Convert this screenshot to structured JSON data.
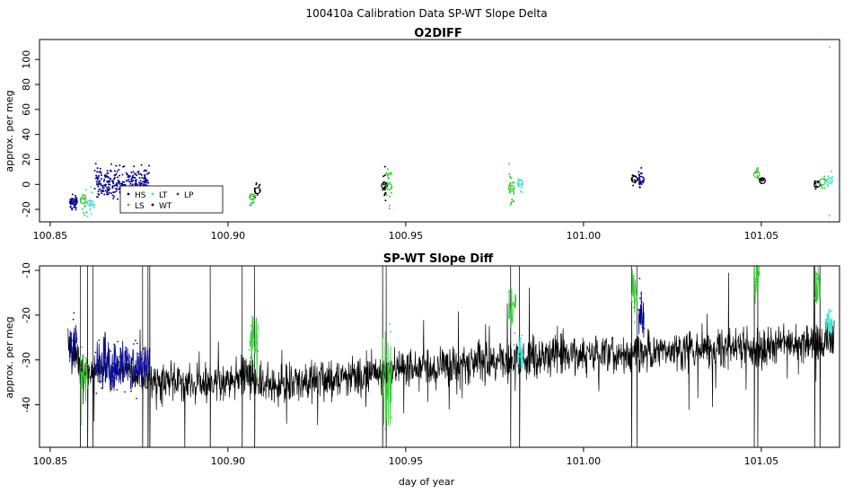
{
  "figure": {
    "title": "100410a   Calibration Data SP-WT Slope Delta",
    "x_axis_label": "day of year"
  },
  "colors": {
    "HS": "#00008b",
    "LS": "#32cd32",
    "LT": "#40e0d0",
    "WT": "#000000",
    "LP": "#404040",
    "HS_run": "#1010a0",
    "trace": "#000000"
  },
  "legend": {
    "entries": [
      {
        "key": "HS",
        "label": "HS"
      },
      {
        "key": "LS",
        "label": "LS"
      },
      {
        "key": "LT",
        "label": "LT"
      },
      {
        "key": "WT",
        "label": "WT"
      },
      {
        "key": "LP",
        "label": "LP"
      }
    ]
  },
  "chart_data": [
    {
      "type": "scatter",
      "title": "O2DIFF",
      "xlabel": "",
      "ylabel": "approx. per meg",
      "xlim": [
        100.847,
        101.072
      ],
      "ylim": [
        -30,
        116
      ],
      "xticks": [
        100.85,
        100.9,
        100.95,
        101.0,
        101.05
      ],
      "xtick_labels": [
        "100.85",
        "100.90",
        "100.95",
        "101.00",
        "101.05"
      ],
      "yticks": [
        -20,
        0,
        20,
        40,
        60,
        80,
        100
      ],
      "ytick_labels": [
        "-20",
        "0",
        "20",
        "40",
        "60",
        "80",
        "100"
      ],
      "legend_position": "bottom-left",
      "clusters": [
        {
          "series": "HS",
          "x": [
            100.8555,
            100.8575
          ],
          "y": -14,
          "spread": 3,
          "n": 50
        },
        {
          "series": "HS",
          "x": [
            100.8625,
            100.878
          ],
          "y": 1,
          "spread": 6,
          "n": 300
        },
        {
          "series": "LS",
          "x": [
            100.8585,
            100.86
          ],
          "y": -14,
          "spread": 5,
          "n": 18
        },
        {
          "series": "LT",
          "x": [
            100.86,
            100.8625
          ],
          "y": -16,
          "spread": 6,
          "n": 22
        },
        {
          "series": "LS",
          "x": [
            100.906,
            100.9075
          ],
          "y": -11,
          "spread": 5,
          "n": 15
        },
        {
          "series": "WT",
          "x": [
            100.9075,
            100.909
          ],
          "y": -5,
          "spread": 3,
          "n": 12
        },
        {
          "series": "WT",
          "x": [
            100.9435,
            100.9445
          ],
          "y": -1,
          "spread": 8,
          "n": 20
        },
        {
          "series": "LS",
          "x": [
            100.9445,
            100.946
          ],
          "y": -3,
          "spread": 8,
          "n": 20
        },
        {
          "series": "LS",
          "x": [
            100.979,
            100.9805
          ],
          "y": -3,
          "spread": 7,
          "n": 25
        },
        {
          "series": "LT",
          "x": [
            100.9815,
            100.983
          ],
          "y": 0,
          "spread": 3,
          "n": 12
        },
        {
          "series": "WT",
          "x": [
            101.0135,
            101.015
          ],
          "y": 4,
          "spread": 2,
          "n": 12
        },
        {
          "series": "HS",
          "x": [
            101.0155,
            101.017
          ],
          "y": 4,
          "spread": 4,
          "n": 25
        },
        {
          "series": "LS",
          "x": [
            101.048,
            101.0495
          ],
          "y": 8,
          "spread": 3,
          "n": 12
        },
        {
          "series": "WT",
          "x": [
            101.0495,
            101.051
          ],
          "y": 3,
          "spread": 2,
          "n": 10
        },
        {
          "series": "WT",
          "x": [
            101.065,
            101.0665
          ],
          "y": 0,
          "spread": 2,
          "n": 10
        },
        {
          "series": "LS",
          "x": [
            101.0665,
            101.068
          ],
          "y": 2,
          "spread": 3,
          "n": 10
        },
        {
          "series": "LT",
          "x": [
            101.0685,
            101.07
          ],
          "y": 3,
          "spread": 3,
          "n": 10
        }
      ],
      "means": [
        {
          "series": "HS",
          "x": 100.8568,
          "y": -14
        },
        {
          "series": "LS",
          "x": 100.8593,
          "y": -13
        },
        {
          "series": "LT",
          "x": 100.8613,
          "y": -15
        },
        {
          "series": "LS",
          "x": 100.9068,
          "y": -10
        },
        {
          "series": "WT",
          "x": 100.9083,
          "y": -5
        },
        {
          "series": "WT",
          "x": 100.944,
          "y": -1
        },
        {
          "series": "LS",
          "x": 100.9453,
          "y": -2
        },
        {
          "series": "LS",
          "x": 100.9797,
          "y": -3
        },
        {
          "series": "LT",
          "x": 100.9822,
          "y": 1
        },
        {
          "series": "WT",
          "x": 101.0143,
          "y": 4
        },
        {
          "series": "HS",
          "x": 101.0162,
          "y": 4
        },
        {
          "series": "LS",
          "x": 101.0487,
          "y": 8
        },
        {
          "series": "WT",
          "x": 101.0503,
          "y": 3
        },
        {
          "series": "WT",
          "x": 101.0657,
          "y": 0
        },
        {
          "series": "LS",
          "x": 101.0672,
          "y": 2
        },
        {
          "series": "LT",
          "x": 101.0692,
          "y": 3
        }
      ],
      "outliers": [
        {
          "series": "LT",
          "x": 101.0692,
          "y": 110
        },
        {
          "series": "LT",
          "x": 101.0692,
          "y": -25
        }
      ]
    },
    {
      "type": "line",
      "title": "SP-WT Slope Diff",
      "xlabel": "day of year",
      "ylabel": "approx. per meg",
      "xlim": [
        100.847,
        101.072
      ],
      "ylim": [
        -49.5,
        -9
      ],
      "xticks": [
        100.85,
        100.9,
        100.95,
        101.0,
        101.05
      ],
      "xtick_labels": [
        "100.85",
        "100.90",
        "100.95",
        "101.00",
        "101.05"
      ],
      "yticks": [
        -40,
        -30,
        -20,
        -10
      ],
      "ytick_labels": [
        "-40",
        "-30",
        "-20",
        "-10"
      ],
      "baseline": [
        {
          "x": 100.855,
          "y": -26
        },
        {
          "x": 100.86,
          "y": -33
        },
        {
          "x": 100.87,
          "y": -32
        },
        {
          "x": 100.88,
          "y": -35
        },
        {
          "x": 100.9,
          "y": -35
        },
        {
          "x": 100.905,
          "y": -33
        },
        {
          "x": 100.91,
          "y": -36
        },
        {
          "x": 100.94,
          "y": -33
        },
        {
          "x": 100.95,
          "y": -32
        },
        {
          "x": 100.98,
          "y": -30
        },
        {
          "x": 100.99,
          "y": -29
        },
        {
          "x": 101.01,
          "y": -29
        },
        {
          "x": 101.02,
          "y": -28
        },
        {
          "x": 101.05,
          "y": -27
        },
        {
          "x": 101.07,
          "y": -26
        }
      ],
      "noise": 3.5,
      "spikes": [
        100.8585,
        100.8605,
        100.862,
        100.876,
        100.8775,
        100.878,
        100.895,
        100.904,
        100.9075,
        100.9435,
        100.9445,
        100.9795,
        100.982,
        101.0135,
        101.015,
        101.048,
        101.049,
        101.065,
        101.0665
      ],
      "calibration_segments": [
        {
          "series": "HS",
          "x": [
            100.8555,
            100.8575
          ],
          "y": -26,
          "spread": 3
        },
        {
          "series": "LS",
          "x": [
            100.8585,
            100.8605
          ],
          "y": -34,
          "spread": 4
        },
        {
          "series": "HS_run",
          "x": [
            100.8625,
            100.878
          ],
          "y": -31,
          "spread": 3
        },
        {
          "series": "LS",
          "x": [
            100.906,
            100.9085
          ],
          "y": -26,
          "spread": 4
        },
        {
          "series": "LS",
          "x": [
            100.9435,
            100.946
          ],
          "y": -33,
          "spread": 6
        },
        {
          "series": "LS",
          "x": [
            100.979,
            100.981
          ],
          "y": -19,
          "spread": 3
        },
        {
          "series": "LT",
          "x": [
            100.9815,
            100.983
          ],
          "y": -28,
          "spread": 2
        },
        {
          "series": "LS",
          "x": [
            101.0135,
            101.015
          ],
          "y": -16,
          "spread": 3
        },
        {
          "series": "HS",
          "x": [
            101.0155,
            101.017
          ],
          "y": -20,
          "spread": 3
        },
        {
          "series": "LS",
          "x": [
            101.048,
            101.0495
          ],
          "y": -12,
          "spread": 3
        },
        {
          "series": "LS",
          "x": [
            101.065,
            101.0665
          ],
          "y": -13,
          "spread": 2
        },
        {
          "series": "LT",
          "x": [
            101.068,
            101.07
          ],
          "y": -21,
          "spread": 2
        }
      ]
    }
  ]
}
